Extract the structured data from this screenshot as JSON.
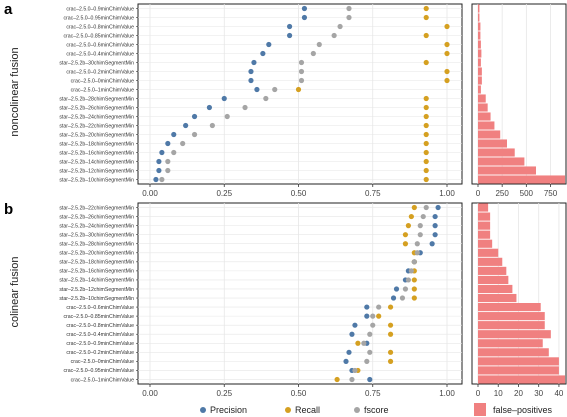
{
  "panel_a_letter": "a",
  "panel_b_letter": "b",
  "panel_a_side": "noncolinear fusion",
  "panel_b_side": "colinear fusion",
  "legend": {
    "precision": "Precision",
    "recall": "Recall",
    "fscore": "fscore",
    "fp": "false–positives"
  },
  "colors": {
    "precision": "#4f79a7",
    "recall": "#d5a021",
    "fscore": "#a5a5a5",
    "bar": "#f08080",
    "grid": "#e6e6e6",
    "border": "#222222"
  },
  "chart_data": [
    {
      "type": "scatter",
      "panel": "a-dots",
      "xlim": [
        0,
        1.0
      ],
      "xticks": [
        "0.00",
        "0.25",
        "0.50",
        "0.75",
        "1.00"
      ],
      "categories": [
        "crac–2.5.0–0.9minChimValue",
        "crac–2.5.0–0.95minChimValue",
        "crac–2.5.0–0.8minChimValue",
        "crac–2.5.0–0.85minChimValue",
        "crac–2.5.0–0.6minChimValue",
        "crac–2.5.0–0.4minChimValue",
        "star–2.5.2b–30chimSegmentMin",
        "crac–2.5.0–0.2minChimValue",
        "crac–2.5.0–0minChimValue",
        "crac–2.5.0–1minChimValue",
        "star–2.5.2b–28chimSegmentMin",
        "star–2.5.2b–26chimSegmentMin",
        "star–2.5.2b–24chimSegmentMin",
        "star–2.5.2b–22chimSegmentMin",
        "star–2.5.2b–20chimSegmentMin",
        "star–2.5.2b–18chimSegmentMin",
        "star–2.5.2b–16chimSegmentMin",
        "star–2.5.2b–14chimSegmentMin",
        "star–2.5.2b–12chimSegmentMin",
        "star–2.5.2b–10chimSegmentMin"
      ],
      "series": [
        {
          "name": "Precision",
          "values": [
            0.52,
            0.52,
            0.47,
            0.47,
            0.4,
            0.38,
            0.35,
            0.34,
            0.34,
            0.36,
            0.25,
            0.2,
            0.15,
            0.12,
            0.08,
            0.06,
            0.04,
            0.03,
            0.03,
            0.02
          ]
        },
        {
          "name": "Recall",
          "values": [
            0.93,
            0.93,
            1.0,
            0.93,
            1.0,
            1.0,
            0.93,
            1.0,
            1.0,
            0.5,
            0.93,
            0.93,
            0.93,
            0.93,
            0.93,
            0.93,
            0.93,
            0.93,
            0.93,
            0.93
          ]
        },
        {
          "name": "fscore",
          "values": [
            0.67,
            0.67,
            0.64,
            0.62,
            0.57,
            0.55,
            0.51,
            0.51,
            0.51,
            0.42,
            0.39,
            0.32,
            0.26,
            0.21,
            0.15,
            0.11,
            0.08,
            0.06,
            0.06,
            0.04
          ]
        }
      ]
    },
    {
      "type": "bar",
      "panel": "a-bars",
      "xlim": [
        0,
        900
      ],
      "xticks": [
        "0",
        "250",
        "500",
        "750"
      ],
      "values": [
        15,
        15,
        25,
        25,
        30,
        35,
        30,
        40,
        40,
        30,
        80,
        100,
        130,
        170,
        230,
        300,
        380,
        480,
        600,
        900
      ]
    },
    {
      "type": "scatter",
      "panel": "b-dots",
      "xlim": [
        0,
        1.0
      ],
      "xticks": [
        "0.00",
        "0.25",
        "0.50",
        "0.75",
        "1.00"
      ],
      "categories": [
        "star–2.5.2b–22chimSegmentMin",
        "star–2.5.2b–26chimSegmentMin",
        "star–2.5.2b–24chimSegmentMin",
        "star–2.5.2b–30chimSegmentMin",
        "star–2.5.2b–28chimSegmentMin",
        "star–2.5.2b–20chimSegmentMin",
        "star–2.5.2b–18chimSegmentMin",
        "star–2.5.2b–16chimSegmentMin",
        "star–2.5.2b–14chimSegmentMin",
        "star–2.5.2b–12chimSegmentMin",
        "star–2.5.2b–10chimSegmentMin",
        "crac–2.5.0–0.6minChimValue",
        "crac–2.5.0–0.85minChimValue",
        "crac–2.5.0–0.8minChimValue",
        "crac–2.5.0–0.4minChimValue",
        "crac–2.5.0–0.9minChimValue",
        "crac–2.5.0–0.2minChimValue",
        "crac–2.5.0–0minChimValue",
        "crac–2.5.0–0.95minChimValue",
        "crac–2.5.0–1minChimValue"
      ],
      "series": [
        {
          "name": "Precision",
          "values": [
            0.97,
            0.96,
            0.96,
            0.96,
            0.95,
            0.91,
            0.89,
            0.87,
            0.86,
            0.83,
            0.82,
            0.73,
            0.73,
            0.69,
            0.68,
            0.73,
            0.67,
            0.66,
            0.68,
            0.74
          ]
        },
        {
          "name": "Recall",
          "values": [
            0.89,
            0.88,
            0.87,
            0.86,
            0.86,
            0.89,
            0.89,
            0.89,
            0.89,
            0.89,
            0.89,
            0.81,
            0.77,
            0.81,
            0.81,
            0.7,
            0.81,
            0.81,
            0.7,
            0.63
          ]
        },
        {
          "name": "fscore",
          "values": [
            0.93,
            0.92,
            0.91,
            0.91,
            0.9,
            0.9,
            0.89,
            0.88,
            0.87,
            0.86,
            0.85,
            0.77,
            0.75,
            0.75,
            0.74,
            0.72,
            0.74,
            0.73,
            0.69,
            0.68
          ]
        }
      ]
    },
    {
      "type": "bar",
      "panel": "b-bars",
      "xlim": [
        0,
        43
      ],
      "xticks": [
        "0",
        "10",
        "20",
        "30",
        "40"
      ],
      "values": [
        5,
        6,
        6,
        6,
        7,
        10,
        12,
        14,
        15,
        17,
        19,
        31,
        33,
        33,
        36,
        32,
        35,
        40,
        40,
        43
      ]
    }
  ]
}
